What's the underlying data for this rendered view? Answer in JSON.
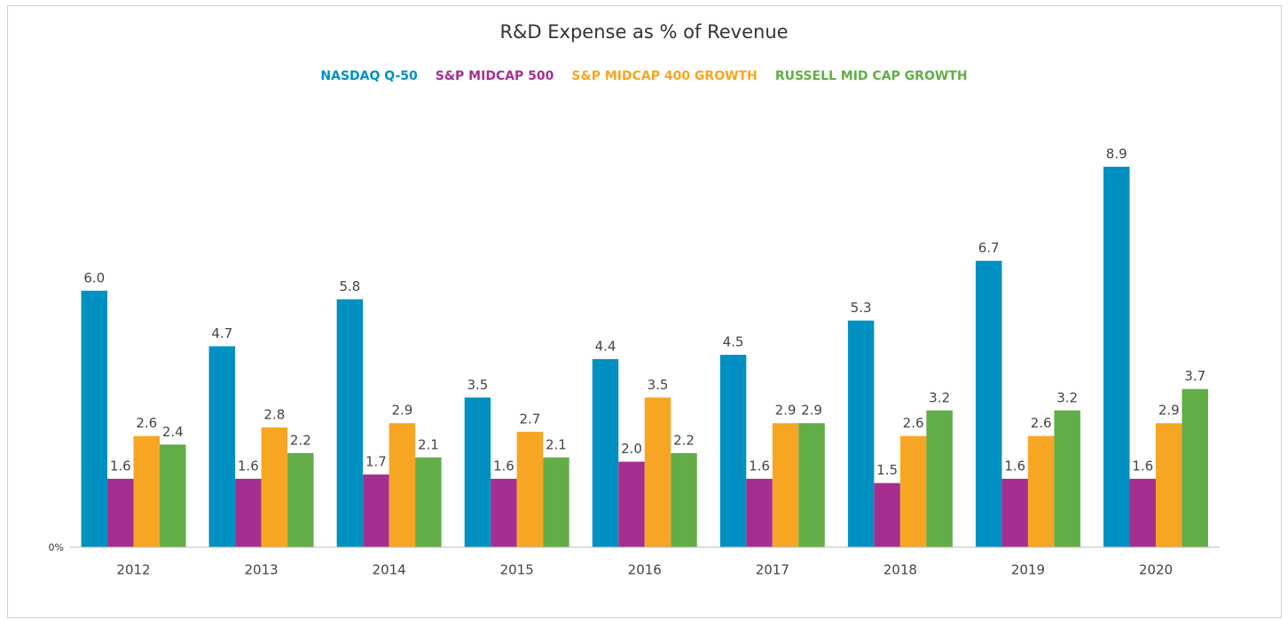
{
  "chart_data": {
    "type": "bar",
    "title": "R&D Expense as % of Revenue",
    "categories": [
      "2012",
      "2013",
      "2014",
      "2015",
      "2016",
      "2017",
      "2018",
      "2019",
      "2020"
    ],
    "series": [
      {
        "name": "NASDAQ Q-50",
        "color": "#0090c2",
        "values": [
          6.0,
          4.7,
          5.8,
          3.5,
          4.4,
          4.5,
          5.3,
          6.7,
          8.9
        ],
        "value_labels": [
          "6.0",
          "4.7",
          "5.8",
          "3.5",
          "4.4",
          "4.5",
          "5.3",
          "6.7",
          "8.9"
        ]
      },
      {
        "name": "S&P MIDCAP 500",
        "color": "#a52f90",
        "values": [
          1.6,
          1.6,
          1.7,
          1.6,
          2.0,
          1.6,
          1.5,
          1.6,
          1.6
        ],
        "value_labels": [
          "1.6",
          "1.6",
          "1.7",
          "1.6",
          "2.0",
          "1.6",
          "1.5",
          "1.6",
          "1.6"
        ]
      },
      {
        "name": "S&P MIDCAP 400 GROWTH",
        "color": "#f6a623",
        "values": [
          2.6,
          2.8,
          2.9,
          2.7,
          3.5,
          2.9,
          2.6,
          2.6,
          2.9
        ],
        "value_labels": [
          "2.6",
          "2.8",
          "2.9",
          "2.7",
          "3.5",
          "2.9",
          "2.6",
          "2.6",
          "2.9"
        ]
      },
      {
        "name": "RUSSELL MID CAP GROWTH",
        "color": "#62ad47",
        "values": [
          2.4,
          2.2,
          2.1,
          2.1,
          2.2,
          2.9,
          3.2,
          3.2,
          3.7
        ],
        "value_labels": [
          "2.4",
          "2.2",
          "2.1",
          "2.1",
          "2.2",
          "2.9",
          "3.2",
          "3.2",
          "3.7"
        ]
      }
    ],
    "ylim": [
      0,
      10
    ],
    "yticks": [
      {
        "value": 0,
        "label": "0%"
      }
    ],
    "grid": false,
    "legend": "top"
  }
}
